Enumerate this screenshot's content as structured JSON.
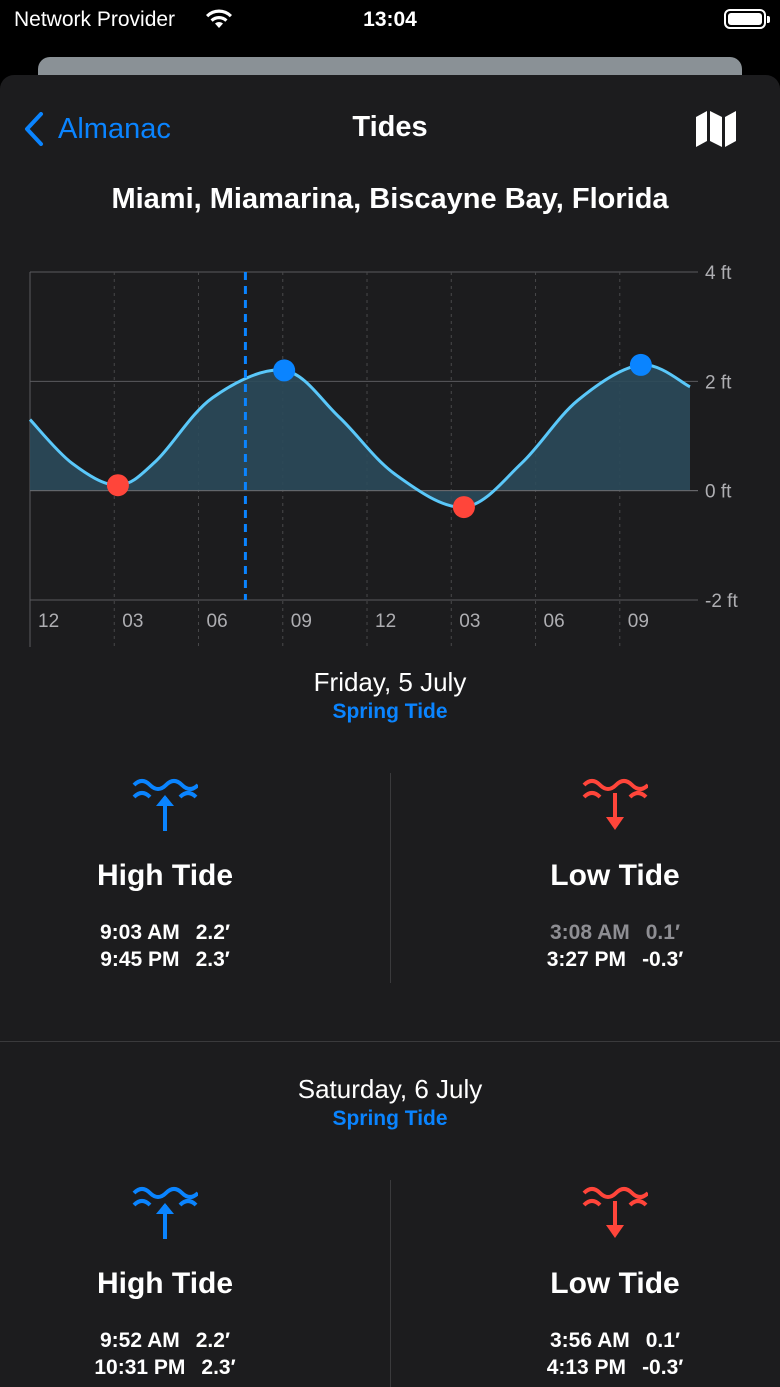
{
  "status_bar": {
    "carrier": "Network Provider",
    "time": "13:04"
  },
  "nav": {
    "back_label": "Almanac",
    "title": "Tides",
    "map_icon": "map-icon"
  },
  "location": "Miami, Miamarina, Biscayne Bay, Florida",
  "colors": {
    "accent": "#0a84ff",
    "high": "#0a84ff",
    "low": "#ff453a",
    "curve": "#5ac8fa",
    "fill": "#2b4a5a"
  },
  "chart_data": {
    "type": "area",
    "unit": "ft",
    "y_ticks": [
      "4 ft",
      "2 ft",
      "0 ft",
      "-2 ft"
    ],
    "ylim": [
      -2,
      4
    ],
    "x_tick_labels": [
      "12",
      "03",
      "06",
      "09",
      "12",
      "03",
      "06",
      "09"
    ],
    "x_range_hours": [
      0,
      23.5
    ],
    "current_time_hours": 7.67,
    "curve": [
      {
        "x": 0,
        "y": 1.3
      },
      {
        "x": 1.5,
        "y": 0.5
      },
      {
        "x": 3.13,
        "y": 0.1
      },
      {
        "x": 4.5,
        "y": 0.55
      },
      {
        "x": 6.5,
        "y": 1.7
      },
      {
        "x": 9.05,
        "y": 2.2
      },
      {
        "x": 11,
        "y": 1.35
      },
      {
        "x": 13,
        "y": 0.3
      },
      {
        "x": 15.45,
        "y": -0.3
      },
      {
        "x": 17.5,
        "y": 0.5
      },
      {
        "x": 19.5,
        "y": 1.65
      },
      {
        "x": 21.75,
        "y": 2.3
      },
      {
        "x": 23.5,
        "y": 1.9
      }
    ],
    "extremes": [
      {
        "x": 3.13,
        "y": 0.1,
        "kind": "low"
      },
      {
        "x": 9.05,
        "y": 2.2,
        "kind": "high"
      },
      {
        "x": 15.45,
        "y": -0.3,
        "kind": "low"
      },
      {
        "x": 21.75,
        "y": 2.3,
        "kind": "high"
      }
    ]
  },
  "days": [
    {
      "date": "Friday, 5 July",
      "sub": "Spring Tide",
      "high": {
        "title": "High Tide",
        "rows": [
          {
            "time": "9:03 AM",
            "value": "2.2′",
            "past": false
          },
          {
            "time": "9:45 PM",
            "value": "2.3′",
            "past": false
          }
        ]
      },
      "low": {
        "title": "Low Tide",
        "rows": [
          {
            "time": "3:08 AM",
            "value": "0.1′",
            "past": true
          },
          {
            "time": "3:27 PM",
            "value": "-0.3′",
            "past": false
          }
        ]
      }
    },
    {
      "date": "Saturday, 6 July",
      "sub": "Spring Tide",
      "high": {
        "title": "High Tide",
        "rows": [
          {
            "time": "9:52 AM",
            "value": "2.2′",
            "past": false
          },
          {
            "time": "10:31 PM",
            "value": "2.3′",
            "past": false
          }
        ]
      },
      "low": {
        "title": "Low Tide",
        "rows": [
          {
            "time": "3:56 AM",
            "value": "0.1′",
            "past": false
          },
          {
            "time": "4:13 PM",
            "value": "-0.3′",
            "past": false
          }
        ]
      }
    }
  ]
}
